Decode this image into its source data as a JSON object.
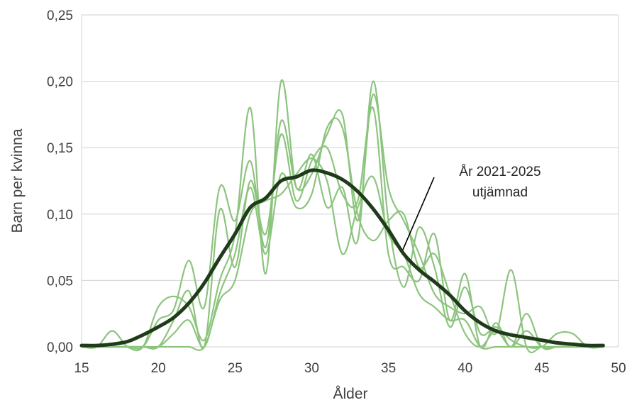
{
  "chart_data": {
    "type": "line",
    "xlabel": "Ålder",
    "ylabel": "Barn per kvinna",
    "xlim": [
      15,
      50
    ],
    "ylim": [
      0,
      0.25
    ],
    "x_ticks": [
      "15",
      "20",
      "25",
      "30",
      "35",
      "40",
      "45",
      "50"
    ],
    "y_ticks": [
      "0,00",
      "0,05",
      "0,10",
      "0,15",
      "0,20",
      "0,25"
    ],
    "grid": "horizontal",
    "colors": {
      "thin": "#8cc47e",
      "smoothed": "#1f3b1a",
      "grid": "#d9d9d9",
      "text": "#404040"
    },
    "annotation": {
      "lines": [
        "År 2021-2025",
        "utjämnad"
      ],
      "points_to_x": 36.3,
      "points_to_y": 0.07
    },
    "series": [
      {
        "role": "smoothed",
        "x": [
          15,
          16,
          17,
          18,
          19,
          20,
          21,
          22,
          23,
          24,
          25,
          26,
          27,
          28,
          29,
          30,
          31,
          32,
          33,
          34,
          35,
          36,
          37,
          38,
          39,
          40,
          41,
          42,
          43,
          44,
          45,
          46,
          47,
          48,
          49
        ],
        "values": [
          0.001,
          0.001,
          0.002,
          0.004,
          0.009,
          0.015,
          0.022,
          0.033,
          0.048,
          0.067,
          0.085,
          0.105,
          0.112,
          0.125,
          0.128,
          0.133,
          0.131,
          0.126,
          0.117,
          0.104,
          0.088,
          0.07,
          0.058,
          0.049,
          0.039,
          0.027,
          0.018,
          0.012,
          0.009,
          0.007,
          0.005,
          0.003,
          0.002,
          0.001,
          0.001
        ]
      },
      {
        "role": "thin",
        "x": [
          15,
          16,
          17,
          18,
          19,
          20,
          21,
          22,
          23,
          24,
          25,
          26,
          27,
          28,
          29,
          30,
          31,
          32,
          33,
          34,
          35,
          36,
          37,
          38,
          39,
          40,
          41,
          42,
          43,
          44,
          45,
          46,
          47,
          48,
          49
        ],
        "values": [
          0,
          0,
          0.012,
          0,
          0,
          0.03,
          0.038,
          0.03,
          0.005,
          0.05,
          0.085,
          0.18,
          0.055,
          0.2,
          0.12,
          0.145,
          0.105,
          0.12,
          0.08,
          0.2,
          0.095,
          0.045,
          0.09,
          0.06,
          0.015,
          0.045,
          0.01,
          0.015,
          0.005,
          0,
          0,
          0.01,
          0.01,
          0,
          0
        ]
      },
      {
        "role": "thin",
        "x": [
          15,
          16,
          17,
          18,
          19,
          20,
          21,
          22,
          23,
          24,
          25,
          26,
          27,
          28,
          29,
          30,
          31,
          32,
          33,
          34,
          35,
          36,
          37,
          38,
          39,
          40,
          41,
          42,
          43,
          44,
          45,
          46,
          47,
          48,
          49
        ],
        "values": [
          0,
          0,
          0,
          0,
          0,
          0.02,
          0.028,
          0.065,
          0.03,
          0.12,
          0.095,
          0.14,
          0.075,
          0.17,
          0.12,
          0.13,
          0.16,
          0.175,
          0.095,
          0.19,
          0.12,
          0.095,
          0.07,
          0.04,
          0.03,
          0.025,
          0.03,
          0.01,
          0.058,
          0,
          0,
          0,
          0,
          0,
          0
        ]
      },
      {
        "role": "thin",
        "x": [
          15,
          16,
          17,
          18,
          19,
          20,
          21,
          22,
          23,
          24,
          25,
          26,
          27,
          28,
          29,
          30,
          31,
          32,
          33,
          34,
          35,
          36,
          37,
          38,
          39,
          40,
          41,
          42,
          43,
          44,
          45,
          46,
          47,
          48,
          49
        ],
        "values": [
          0,
          0,
          0,
          0,
          0,
          0,
          0.02,
          0.042,
          0,
          0.103,
          0.06,
          0.125,
          0.085,
          0.16,
          0.11,
          0.14,
          0.15,
          0.115,
          0.11,
          0.18,
          0.07,
          0.06,
          0.05,
          0.085,
          0.02,
          0.055,
          0,
          0.018,
          0,
          0.025,
          0,
          0,
          0,
          0,
          0
        ]
      },
      {
        "role": "thin",
        "x": [
          15,
          16,
          17,
          18,
          19,
          20,
          21,
          22,
          23,
          24,
          25,
          26,
          27,
          28,
          29,
          30,
          31,
          32,
          33,
          34,
          35,
          36,
          37,
          38,
          39,
          40,
          41,
          42,
          43,
          44,
          45,
          46,
          47,
          48,
          49
        ],
        "values": [
          0,
          0,
          0,
          0,
          0,
          0,
          0.01,
          0.02,
          0,
          0.04,
          0.07,
          0.12,
          0.07,
          0.13,
          0.105,
          0.115,
          0.165,
          0.165,
          0.1,
          0.08,
          0.095,
          0.1,
          0.06,
          0.07,
          0.04,
          0.01,
          0,
          0.012,
          0,
          0.012,
          0,
          0,
          0,
          0,
          0
        ]
      },
      {
        "role": "thin",
        "x": [
          15,
          16,
          17,
          18,
          19,
          20,
          21,
          22,
          23,
          24,
          25,
          26,
          27,
          28,
          29,
          30,
          31,
          32,
          33,
          34,
          35,
          36,
          37,
          38,
          39,
          40,
          41,
          42,
          43,
          44,
          45,
          46,
          47,
          48,
          49
        ],
        "values": [
          0,
          0,
          0,
          0,
          0,
          0,
          0,
          0,
          0,
          0.035,
          0.05,
          0.1,
          0.11,
          0.115,
          0.13,
          0.142,
          0.125,
          0.07,
          0.105,
          0.128,
          0.085,
          0.07,
          0.04,
          0.03,
          0.02,
          0.02,
          0,
          0,
          0,
          0,
          0,
          0,
          0,
          0,
          0
        ]
      }
    ]
  }
}
